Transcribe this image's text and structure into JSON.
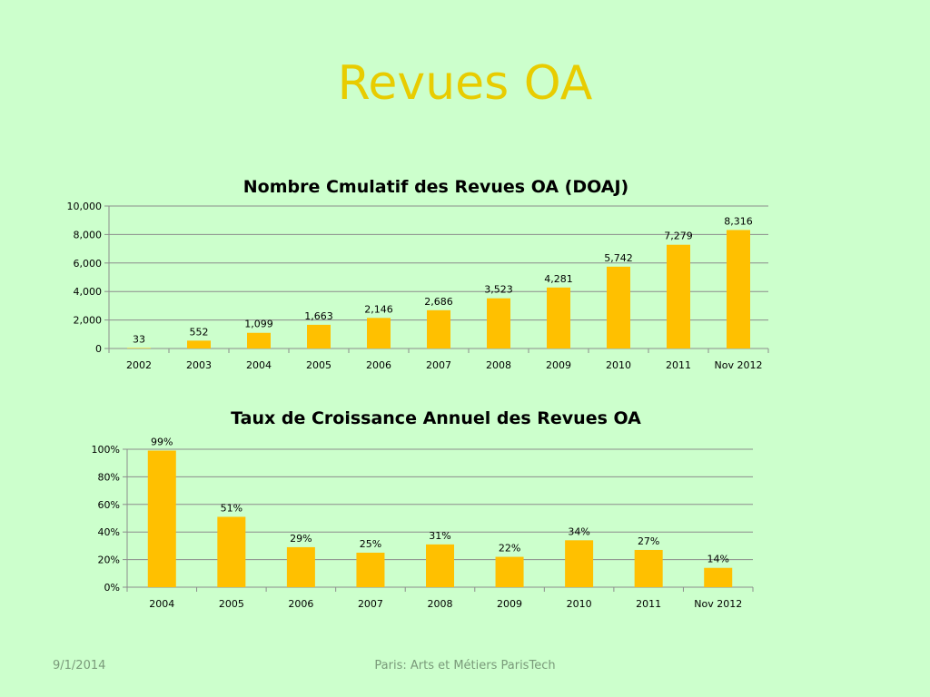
{
  "slide": {
    "title": "Revues OA",
    "footer_date": "9/1/2014",
    "footer_center": "Paris: Arts et Métiers ParisTech"
  },
  "colors": {
    "bar": "#ffc000",
    "grid": "#8c8c8c",
    "background": "#ccffcc",
    "title": "#e8cc00"
  },
  "chart_data": [
    {
      "type": "bar",
      "title": "Nombre Cmulatif des Revues OA (DOAJ)",
      "categories": [
        "2002",
        "2003",
        "2004",
        "2005",
        "2006",
        "2007",
        "2008",
        "2009",
        "2010",
        "2011",
        "Nov 2012"
      ],
      "values": [
        33,
        552,
        1099,
        1663,
        2146,
        2686,
        3523,
        4281,
        5742,
        7279,
        8316
      ],
      "value_labels": [
        "33",
        "552",
        "1,099",
        "1,663",
        "2,146",
        "2,686",
        "3,523",
        "4,281",
        "5,742",
        "7,279",
        "8,316"
      ],
      "yticks": [
        "0",
        "2,000",
        "4,000",
        "6,000",
        "8,000",
        "10,000"
      ],
      "ylim": [
        0,
        10000
      ],
      "grid": true,
      "legend": "none"
    },
    {
      "type": "bar",
      "title": "Taux de Croissance Annuel des Revues OA",
      "categories": [
        "2004",
        "2005",
        "2006",
        "2007",
        "2008",
        "2009",
        "2010",
        "2011",
        "Nov 2012"
      ],
      "values": [
        99,
        51,
        29,
        25,
        31,
        22,
        34,
        27,
        14
      ],
      "value_labels": [
        "99%",
        "51%",
        "29%",
        "25%",
        "31%",
        "22%",
        "34%",
        "27%",
        "14%"
      ],
      "yticks": [
        "0%",
        "20%",
        "40%",
        "60%",
        "80%",
        "100%"
      ],
      "ylim": [
        0,
        100
      ],
      "grid": true,
      "legend": "none"
    }
  ]
}
